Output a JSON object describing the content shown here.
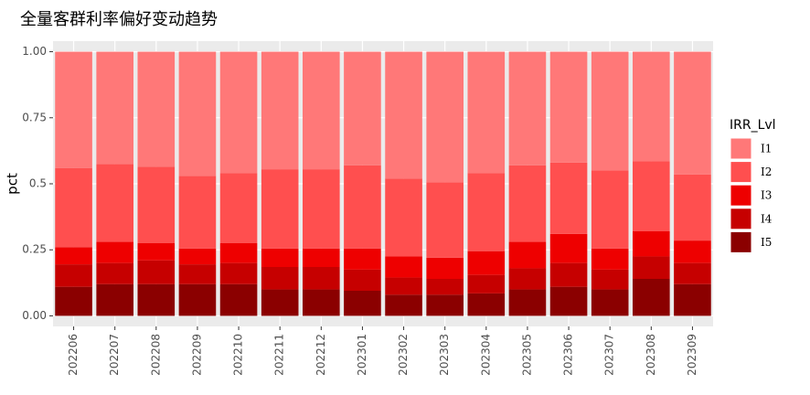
{
  "chart_data": {
    "type": "stacked_bar",
    "title": "全量客群利率偏好变动趋势",
    "y_label": "pct",
    "legend_title": "IRR_Lvl",
    "legend_position": "right",
    "grid": true,
    "categories": [
      "202206",
      "202207",
      "202208",
      "202209",
      "202210",
      "202211",
      "202212",
      "202301",
      "202302",
      "202303",
      "202304",
      "202305",
      "202306",
      "202307",
      "202308",
      "202309"
    ],
    "series": [
      {
        "name": "I1",
        "color": "#ff7878",
        "values": [
          0.44,
          0.425,
          0.435,
          0.47,
          0.46,
          0.445,
          0.445,
          0.43,
          0.48,
          0.495,
          0.46,
          0.43,
          0.42,
          0.45,
          0.415,
          0.465
        ]
      },
      {
        "name": "I2",
        "color": "#ff4f4f",
        "values": [
          0.3,
          0.295,
          0.29,
          0.275,
          0.265,
          0.3,
          0.3,
          0.315,
          0.295,
          0.285,
          0.295,
          0.29,
          0.27,
          0.295,
          0.265,
          0.25
        ]
      },
      {
        "name": "I3",
        "color": "#ee0000",
        "values": [
          0.065,
          0.08,
          0.065,
          0.06,
          0.075,
          0.07,
          0.07,
          0.08,
          0.08,
          0.08,
          0.09,
          0.1,
          0.11,
          0.08,
          0.095,
          0.085
        ]
      },
      {
        "name": "I4",
        "color": "#c60000",
        "values": [
          0.085,
          0.08,
          0.09,
          0.075,
          0.08,
          0.085,
          0.085,
          0.08,
          0.065,
          0.06,
          0.07,
          0.08,
          0.09,
          0.075,
          0.085,
          0.08
        ]
      },
      {
        "name": "I5",
        "color": "#8b0000",
        "values": [
          0.11,
          0.12,
          0.12,
          0.12,
          0.12,
          0.1,
          0.1,
          0.095,
          0.08,
          0.08,
          0.085,
          0.1,
          0.11,
          0.1,
          0.14,
          0.12
        ]
      }
    ],
    "ylim": [
      -0.04,
      1.04
    ],
    "yticks": [
      {
        "value": 0,
        "label": "0.00"
      },
      0.25,
      0.5,
      0.75,
      {
        "value": 1,
        "label": "1.00"
      }
    ]
  }
}
